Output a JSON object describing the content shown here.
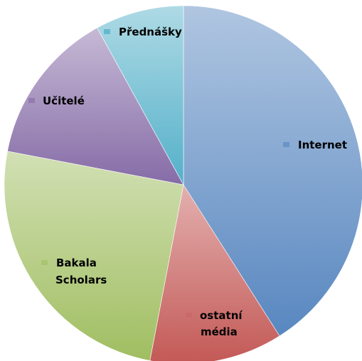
{
  "chart_data": {
    "type": "pie",
    "title": "",
    "categories": [
      "Internet",
      "ostatní média",
      "Bakala Scholars",
      "Učitelé",
      "Přednášky"
    ],
    "values": [
      41,
      12,
      25,
      14,
      8
    ],
    "colors": [
      "#4f81bd",
      "#c0504d",
      "#9bbb59",
      "#8064a2",
      "#4bacc6"
    ],
    "legend": "labels on slices",
    "start": "top, clockwise"
  }
}
